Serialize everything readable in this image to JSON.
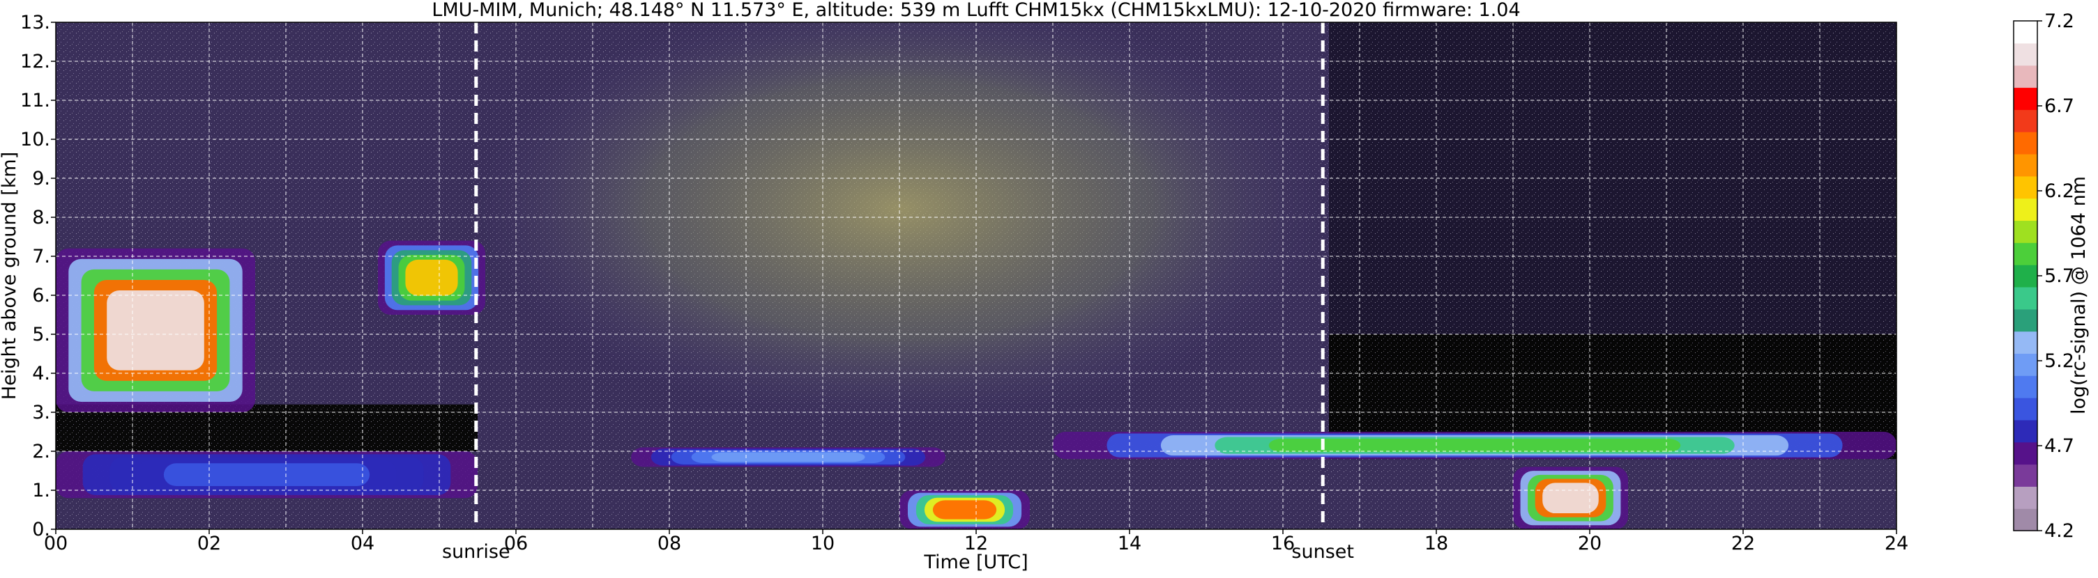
{
  "chart_data": {
    "type": "heatmap",
    "title": "LMU-MIM, Munich; 48.148° N 11.573° E, altitude: 539 m    Lufft CHM15kx (CHM15kxLMU): 12-10-2020    firmware: 1.04",
    "xlabel": "Time [UTC]",
    "ylabel": "Height above ground [km]",
    "xlim": [
      0,
      24
    ],
    "ylim": [
      0,
      13
    ],
    "x_ticks": [
      "00",
      "02",
      "04",
      "06",
      "08",
      "10",
      "12",
      "14",
      "16",
      "18",
      "20",
      "22",
      "24"
    ],
    "y_ticks": [
      "0.",
      "1.",
      "2.",
      "3.",
      "4.",
      "5.",
      "6.",
      "7.",
      "8.",
      "9.",
      "10.",
      "11.",
      "12.",
      "13."
    ],
    "grid": true,
    "colorbar": {
      "label": "log(rc-signal) @ 1064 nm",
      "range": [
        4.2,
        7.2
      ],
      "ticks": [
        "4.2",
        "4.7",
        "5.2",
        "5.7",
        "6.2",
        "6.7",
        "7.2"
      ],
      "colors": [
        "#a08aa8",
        "#b79fc0",
        "#7a3a9a",
        "#56128a",
        "#2d2ab8",
        "#3a55e0",
        "#4f7af0",
        "#6f9cf5",
        "#95b9f5",
        "#2aa07a",
        "#3ac98a",
        "#1fb04a",
        "#4ccf3a",
        "#9fe020",
        "#eef01a",
        "#ffc400",
        "#ff9500",
        "#ff6a00",
        "#f23a1a",
        "#ff0000",
        "#e8b8bc",
        "#efe0e2",
        "#ffffff"
      ]
    },
    "annotations": [
      {
        "label": "sunrise",
        "x": 5.48
      },
      {
        "label": "sunset",
        "x": 16.52
      }
    ],
    "features": [
      {
        "kind": "cloud",
        "t": [
          0.0,
          2.6
        ],
        "z": [
          3.0,
          7.2
        ],
        "max_level": 7.0
      },
      {
        "kind": "cloud",
        "t": [
          4.2,
          5.6
        ],
        "z": [
          5.5,
          7.4
        ],
        "max_level": 6.2
      },
      {
        "kind": "layer",
        "t": [
          0.0,
          5.5
        ],
        "z": [
          0.8,
          2.0
        ],
        "max_level": 4.9
      },
      {
        "kind": "layer",
        "t": [
          7.5,
          11.6
        ],
        "z": [
          1.6,
          2.1
        ],
        "max_level": 5.2
      },
      {
        "kind": "layer",
        "t": [
          13.0,
          24.0
        ],
        "z": [
          1.8,
          2.5
        ],
        "max_level": 5.8
      },
      {
        "kind": "boundary-layer",
        "t": [
          11.0,
          12.7
        ],
        "z": [
          0.0,
          1.0
        ],
        "max_level": 6.5
      },
      {
        "kind": "boundary-layer",
        "t": [
          19.0,
          20.5
        ],
        "z": [
          0.0,
          1.6
        ],
        "max_level": 7.0
      },
      {
        "kind": "noise",
        "t": [
          5.5,
          16.5
        ],
        "z": [
          2.0,
          13.0
        ],
        "max_level": 5.7
      }
    ]
  }
}
